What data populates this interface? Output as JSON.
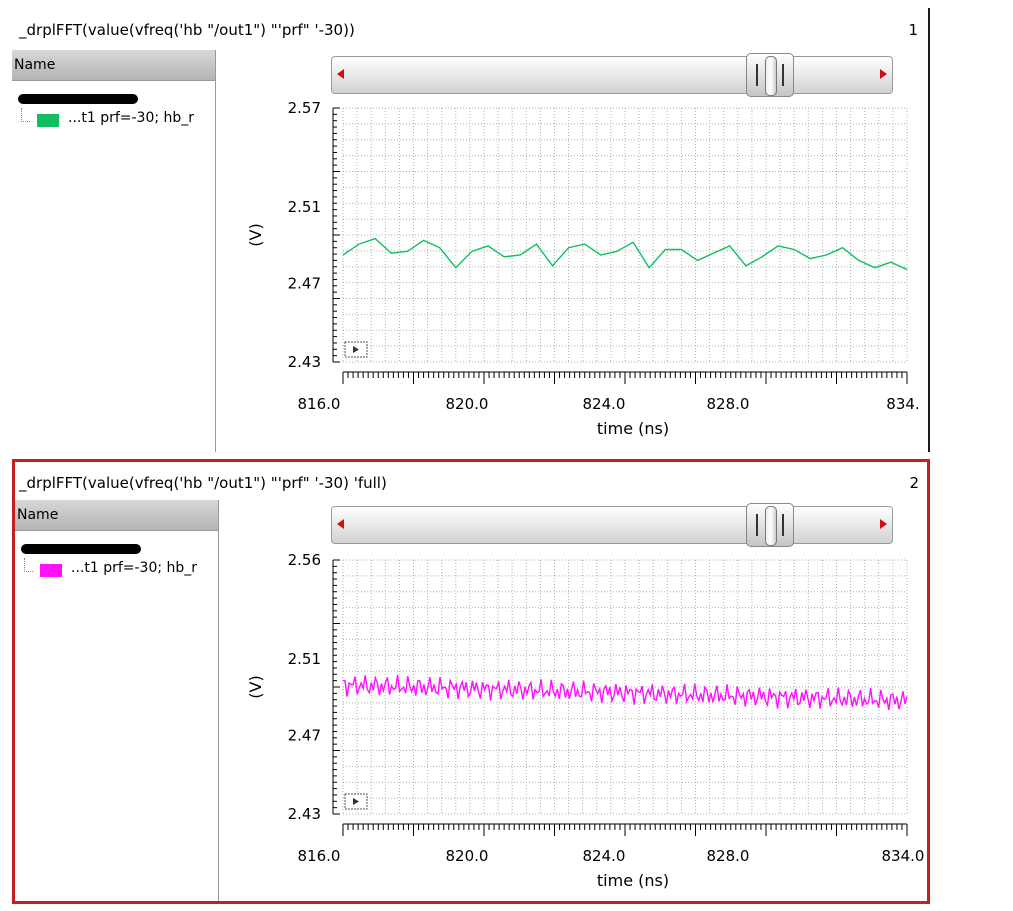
{
  "panels": [
    {
      "title": "_drplFFT(value(vfreq('hb \"/out1\") \"'prf\" '-30))",
      "number": "1",
      "name_header": "Name",
      "signal_label": "...t1 prf=-30; hb_r",
      "signal_color": "#10c060"
    },
    {
      "title": "_drplFFT(value(vfreq('hb \"/out1\") \"'prf\" '-30) 'full)",
      "number": "2",
      "name_header": "Name",
      "signal_label": "...t1 prf=-30; hb_r",
      "signal_color": "#ff10ff"
    }
  ],
  "chart_data": [
    {
      "type": "line",
      "xlabel": "time (ns)",
      "ylabel": "(V)",
      "xlim": [
        816.5,
        834.0
      ],
      "ylim": [
        2.43,
        2.57
      ],
      "xticks": [
        "816.0",
        "820.0",
        "824.0",
        "828.0",
        "834."
      ],
      "yticks": [
        "2.57",
        "2.51",
        "2.47",
        "2.43"
      ],
      "grid": true,
      "series": [
        {
          "color": "#10c060",
          "x": [
            816.5,
            817.0,
            817.5,
            818.0,
            818.5,
            819.0,
            819.5,
            820.0,
            820.5,
            821.0,
            821.5,
            822.0,
            822.5,
            823.0,
            823.5,
            824.0,
            824.5,
            825.0,
            825.5,
            826.0,
            826.5,
            827.0,
            827.5,
            828.0,
            828.5,
            829.0,
            829.5,
            830.0,
            830.5,
            831.0,
            831.5,
            832.0,
            832.5,
            833.0,
            833.5,
            834.0
          ],
          "y": [
            2.489,
            2.495,
            2.498,
            2.49,
            2.491,
            2.497,
            2.493,
            2.482,
            2.491,
            2.494,
            2.488,
            2.489,
            2.495,
            2.483,
            2.493,
            2.495,
            2.489,
            2.491,
            2.496,
            2.482,
            2.492,
            2.492,
            2.486,
            2.49,
            2.494,
            2.483,
            2.488,
            2.494,
            2.492,
            2.487,
            2.489,
            2.493,
            2.486,
            2.482,
            2.485,
            2.481
          ]
        }
      ]
    },
    {
      "type": "line",
      "xlabel": "time (ns)",
      "ylabel": "(V)",
      "xlim": [
        816.5,
        834.0
      ],
      "ylim": [
        2.43,
        2.56
      ],
      "xticks": [
        "816.0",
        "820.0",
        "824.0",
        "828.0",
        "834.0"
      ],
      "yticks": [
        "2.56",
        "2.51",
        "2.47",
        "2.43"
      ],
      "grid": true,
      "series": [
        {
          "color": "#ff10ff",
          "x_range": [
            816.5,
            834.0
          ],
          "points": 280,
          "y_start": 2.496,
          "y_end": 2.488,
          "ripple_amplitude": 0.006
        }
      ]
    }
  ]
}
